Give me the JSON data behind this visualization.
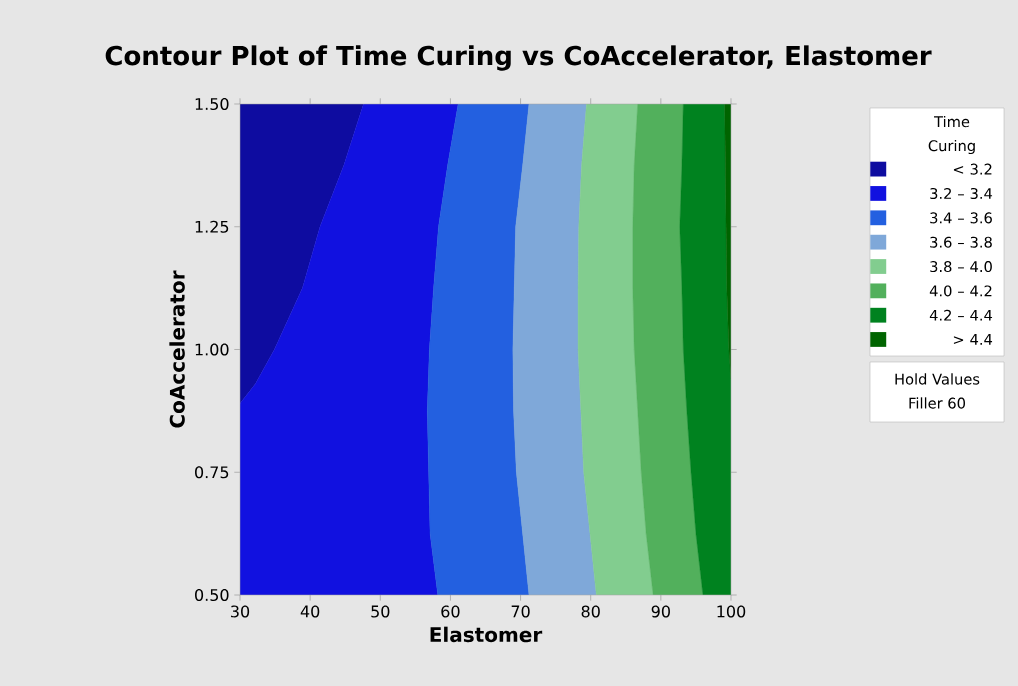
{
  "chart_data": {
    "type": "area",
    "title": "Contour Plot of Time Curing vs CoAccelerator, Elastomer",
    "xlabel": "Elastomer",
    "ylabel": "CoAccelerator",
    "legend_title": "Time Curing",
    "legend": "right",
    "xlim": [
      30,
      100
    ],
    "ylim": [
      0.5,
      1.5
    ],
    "xticks": [
      30,
      40,
      50,
      60,
      70,
      80,
      90,
      100
    ],
    "yticks": [
      {
        "value": 0.5,
        "label": "0.50"
      },
      {
        "value": 0.75,
        "label": "0.75"
      },
      {
        "value": 1.0,
        "label": "1.00"
      },
      {
        "value": 1.25,
        "label": "1.25"
      },
      {
        "value": 1.5,
        "label": "1.50"
      }
    ],
    "series": [
      {
        "name": "<  3.2",
        "color": "#0e0ca0",
        "x": [
          47.6,
          44.8,
          41.4,
          38.9,
          34.9,
          32.2,
          30,
          30
        ],
        "values": [
          1.5,
          1.375,
          1.25,
          1.125,
          1.0,
          0.93,
          0.89,
          1.5
        ]
      },
      {
        "name": "3.2  –  3.4",
        "color": "#1111e0",
        "x": [
          61.1,
          59.6,
          58.3,
          57.6,
          57.0,
          56.7,
          56.9,
          57.1,
          58.2,
          30,
          30,
          32.2,
          34.9,
          38.9,
          41.4,
          44.8,
          47.6
        ],
        "values": [
          1.5,
          1.375,
          1.25,
          1.125,
          1.0,
          0.875,
          0.75,
          0.625,
          0.5,
          0.5,
          0.89,
          0.93,
          1.0,
          1.125,
          1.25,
          1.375,
          1.5
        ]
      },
      {
        "name": "3.4  –  3.6",
        "color": "#2360e0",
        "x": [
          71.2,
          70.3,
          69.3,
          69.1,
          68.9,
          69.0,
          69.4,
          70.3,
          71.2,
          58.2,
          57.1,
          56.9,
          56.7,
          57.0,
          57.6,
          58.3,
          59.6,
          61.1
        ],
        "values": [
          1.5,
          1.375,
          1.25,
          1.125,
          1.0,
          0.875,
          0.75,
          0.625,
          0.5,
          0.5,
          0.625,
          0.75,
          0.875,
          1.0,
          1.125,
          1.25,
          1.375,
          1.5
        ]
      },
      {
        "name": "3.6  –  3.8",
        "color": "#7fa8d9",
        "x": [
          79.4,
          78.7,
          78.3,
          78.2,
          78.2,
          78.6,
          79.0,
          79.9,
          80.8,
          71.2,
          70.3,
          69.4,
          69.0,
          68.9,
          69.1,
          69.3,
          70.3,
          71.2
        ],
        "values": [
          1.5,
          1.375,
          1.25,
          1.125,
          1.0,
          0.875,
          0.75,
          0.625,
          0.5,
          0.5,
          0.625,
          0.75,
          0.875,
          1.0,
          1.125,
          1.25,
          1.375,
          1.5
        ]
      },
      {
        "name": "3.8  –  4.0",
        "color": "#82cd8f",
        "x": [
          86.7,
          86.2,
          86.0,
          86.0,
          86.2,
          86.7,
          87.2,
          87.9,
          88.9,
          80.8,
          79.9,
          79.0,
          78.6,
          78.2,
          78.2,
          78.3,
          78.7,
          79.4
        ],
        "values": [
          1.5,
          1.375,
          1.25,
          1.125,
          1.0,
          0.875,
          0.75,
          0.625,
          0.5,
          0.5,
          0.625,
          0.75,
          0.875,
          1.0,
          1.125,
          1.25,
          1.375,
          1.5
        ]
      },
      {
        "name": "4.0  –  4.2",
        "color": "#52b05c",
        "x": [
          93.2,
          93.0,
          92.7,
          93.0,
          93.2,
          93.7,
          94.3,
          95.0,
          96.0,
          88.9,
          87.9,
          87.2,
          86.7,
          86.2,
          86.0,
          86.0,
          86.2,
          86.7
        ],
        "values": [
          1.5,
          1.375,
          1.25,
          1.125,
          1.0,
          0.875,
          0.75,
          0.625,
          0.5,
          0.5,
          0.625,
          0.75,
          0.875,
          1.0,
          1.125,
          1.25,
          1.375,
          1.5
        ]
      },
      {
        "name": "4.2  –  4.4",
        "color": "#00821f",
        "x": [
          99.1,
          99.2,
          99.3,
          99.4,
          99.7,
          100,
          100,
          96.0,
          95.0,
          94.3,
          93.7,
          93.2,
          93.0,
          92.7,
          93.0,
          93.2
        ],
        "values": [
          1.5,
          1.375,
          1.25,
          1.125,
          1.0,
          0.94,
          0.5,
          0.5,
          0.625,
          0.75,
          0.875,
          1.0,
          1.125,
          1.25,
          1.375,
          1.5
        ]
      },
      {
        "name": ">  4.4",
        "color": "#006400",
        "x": [
          100,
          100,
          99.7,
          99.4,
          99.3,
          99.2,
          99.1
        ],
        "values": [
          1.5,
          0.94,
          1.0,
          1.125,
          1.25,
          1.375,
          1.5
        ]
      }
    ],
    "annotations": [
      "Hold Values",
      "Filler  60"
    ]
  }
}
